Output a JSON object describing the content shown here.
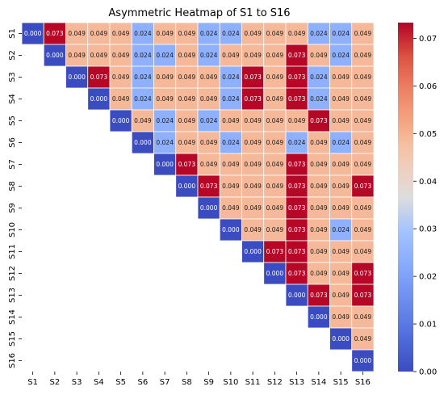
{
  "chart_data": {
    "type": "heatmap",
    "title": "Asymmetric Heatmap of S1 to S16",
    "xlabel": "",
    "ylabel": "",
    "x_categories": [
      "S1",
      "S2",
      "S3",
      "S4",
      "S5",
      "S6",
      "S7",
      "S8",
      "S9",
      "S10",
      "S11",
      "S12",
      "S13",
      "S14",
      "S15",
      "S16"
    ],
    "y_categories": [
      "S1",
      "S2",
      "S3",
      "S4",
      "S5",
      "S6",
      "S7",
      "S8",
      "S9",
      "S10",
      "S11",
      "S12",
      "S13",
      "S14",
      "S15",
      "S16"
    ],
    "values": [
      [
        0.0,
        0.073,
        0.049,
        0.049,
        0.049,
        0.024,
        0.049,
        0.049,
        0.024,
        0.024,
        0.049,
        0.049,
        0.049,
        0.024,
        0.024,
        0.049
      ],
      [
        null,
        0.0,
        0.049,
        0.049,
        0.049,
        0.024,
        0.024,
        0.049,
        0.024,
        0.049,
        0.049,
        0.049,
        0.073,
        0.049,
        0.024,
        0.049
      ],
      [
        null,
        null,
        0.0,
        0.073,
        0.049,
        0.024,
        0.049,
        0.049,
        0.049,
        0.024,
        0.073,
        0.049,
        0.073,
        0.024,
        0.049,
        0.049
      ],
      [
        null,
        null,
        null,
        0.0,
        0.049,
        0.024,
        0.049,
        0.049,
        0.049,
        0.024,
        0.073,
        0.049,
        0.073,
        0.024,
        0.049,
        0.049
      ],
      [
        null,
        null,
        null,
        null,
        0.0,
        0.049,
        0.024,
        0.049,
        0.024,
        0.049,
        0.049,
        0.049,
        0.049,
        0.073,
        0.049,
        0.049
      ],
      [
        null,
        null,
        null,
        null,
        null,
        0.0,
        0.024,
        0.049,
        0.049,
        0.024,
        0.049,
        0.049,
        0.024,
        0.049,
        0.024,
        0.049
      ],
      [
        null,
        null,
        null,
        null,
        null,
        null,
        0.0,
        0.073,
        0.049,
        0.049,
        0.049,
        0.049,
        0.073,
        0.049,
        0.049,
        0.049
      ],
      [
        null,
        null,
        null,
        null,
        null,
        null,
        null,
        0.0,
        0.073,
        0.049,
        0.049,
        0.049,
        0.073,
        0.049,
        0.049,
        0.073
      ],
      [
        null,
        null,
        null,
        null,
        null,
        null,
        null,
        null,
        0.0,
        0.049,
        0.049,
        0.049,
        0.073,
        0.049,
        0.049,
        0.049
      ],
      [
        null,
        null,
        null,
        null,
        null,
        null,
        null,
        null,
        null,
        0.0,
        0.049,
        0.049,
        0.073,
        0.049,
        0.024,
        0.049
      ],
      [
        null,
        null,
        null,
        null,
        null,
        null,
        null,
        null,
        null,
        null,
        0.0,
        0.073,
        0.073,
        0.049,
        0.049,
        0.049
      ],
      [
        null,
        null,
        null,
        null,
        null,
        null,
        null,
        null,
        null,
        null,
        null,
        0.0,
        0.073,
        0.049,
        0.049,
        0.073
      ],
      [
        null,
        null,
        null,
        null,
        null,
        null,
        null,
        null,
        null,
        null,
        null,
        null,
        0.0,
        0.073,
        0.049,
        0.073
      ],
      [
        null,
        null,
        null,
        null,
        null,
        null,
        null,
        null,
        null,
        null,
        null,
        null,
        null,
        0.0,
        0.049,
        0.049
      ],
      [
        null,
        null,
        null,
        null,
        null,
        null,
        null,
        null,
        null,
        null,
        null,
        null,
        null,
        null,
        0.0,
        0.049
      ],
      [
        null,
        null,
        null,
        null,
        null,
        null,
        null,
        null,
        null,
        null,
        null,
        null,
        null,
        null,
        null,
        0.0
      ]
    ],
    "value_format": "0.000",
    "colormap": "coolwarm",
    "colorbar": {
      "vmin": 0.0,
      "vmax": 0.0733,
      "ticks": [
        0.0,
        0.01,
        0.02,
        0.03,
        0.04,
        0.05,
        0.06,
        0.07
      ],
      "tick_labels": [
        "0.00",
        "0.01",
        "0.02",
        "0.03",
        "0.04",
        "0.05",
        "0.06",
        "0.07"
      ]
    },
    "grid": false,
    "cell_border_color": "#ffffff"
  }
}
